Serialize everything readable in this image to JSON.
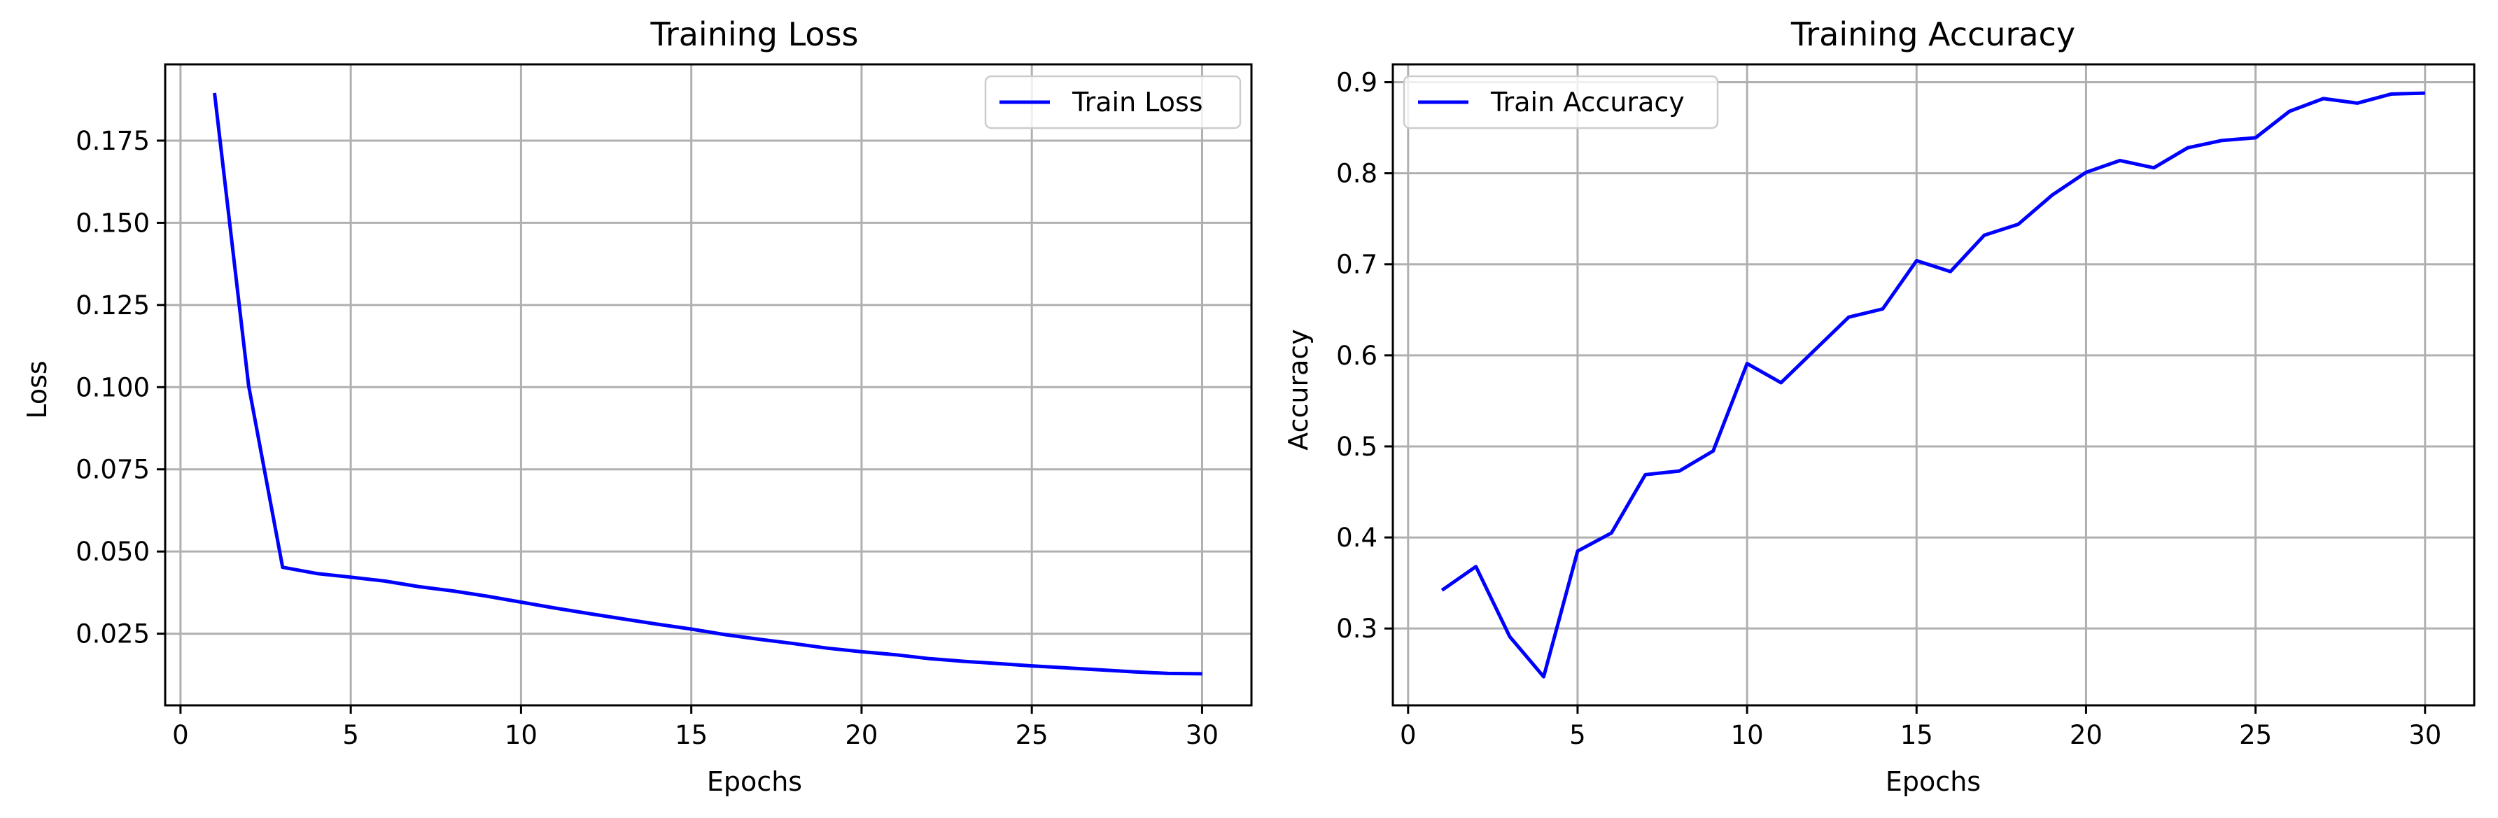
{
  "colors": {
    "line": "#0000ff",
    "grid": "#b0b0b0",
    "axes": "#000000",
    "background": "#ffffff"
  },
  "chart_data": [
    {
      "type": "line",
      "title": "Training Loss",
      "xlabel": "Epochs",
      "ylabel": "Loss",
      "xlim": [
        -0.45,
        31.45
      ],
      "ylim": [
        0.0032,
        0.1982
      ],
      "xticks": [
        0,
        5,
        10,
        15,
        20,
        25,
        30
      ],
      "yticks": [
        0.025,
        0.05,
        0.075,
        0.1,
        0.125,
        0.15,
        0.175
      ],
      "xtick_labels": [
        "0",
        "5",
        "10",
        "15",
        "20",
        "25",
        "30"
      ],
      "ytick_labels": [
        "0.025",
        "0.050",
        "0.075",
        "0.100",
        "0.125",
        "0.150",
        "0.175"
      ],
      "grid": true,
      "legend": "upper right",
      "series": [
        {
          "name": "Train Loss",
          "x": [
            1,
            2,
            3,
            4,
            5,
            6,
            7,
            8,
            9,
            10,
            11,
            12,
            13,
            14,
            15,
            16,
            17,
            18,
            19,
            20,
            21,
            22,
            23,
            24,
            25,
            26,
            27,
            28,
            29,
            30
          ],
          "y": [
            0.1895,
            0.1005,
            0.0452,
            0.0433,
            0.0422,
            0.041,
            0.0393,
            0.038,
            0.0364,
            0.0346,
            0.0328,
            0.0311,
            0.0295,
            0.0279,
            0.0264,
            0.0247,
            0.0233,
            0.022,
            0.0206,
            0.0195,
            0.0186,
            0.0174,
            0.0166,
            0.0159,
            0.0152,
            0.0146,
            0.014,
            0.0134,
            0.0129,
            0.0128
          ]
        }
      ]
    },
    {
      "type": "line",
      "title": "Training Accuracy",
      "xlabel": "Epochs",
      "ylabel": "Accuracy",
      "xlim": [
        -0.45,
        31.45
      ],
      "ylim": [
        0.2156,
        0.9196
      ],
      "xticks": [
        0,
        5,
        10,
        15,
        20,
        25,
        30
      ],
      "yticks": [
        0.3,
        0.4,
        0.5,
        0.6,
        0.7,
        0.8,
        0.9
      ],
      "xtick_labels": [
        "0",
        "5",
        "10",
        "15",
        "20",
        "25",
        "30"
      ],
      "ytick_labels": [
        "0.3",
        "0.4",
        "0.5",
        "0.6",
        "0.7",
        "0.8",
        "0.9"
      ],
      "grid": true,
      "legend": "upper left",
      "series": [
        {
          "name": "Train Accuracy",
          "x": [
            1,
            2,
            3,
            4,
            5,
            6,
            7,
            8,
            9,
            10,
            11,
            12,
            13,
            14,
            15,
            16,
            17,
            18,
            19,
            20,
            21,
            22,
            23,
            24,
            25,
            26,
            27,
            28,
            29,
            30
          ],
          "y": [
            0.342,
            0.368,
            0.291,
            0.247,
            0.385,
            0.405,
            0.469,
            0.473,
            0.495,
            0.591,
            0.57,
            0.606,
            0.642,
            0.651,
            0.704,
            0.692,
            0.732,
            0.744,
            0.776,
            0.801,
            0.814,
            0.806,
            0.828,
            0.836,
            0.839,
            0.868,
            0.882,
            0.877,
            0.887,
            0.888
          ]
        }
      ]
    }
  ]
}
